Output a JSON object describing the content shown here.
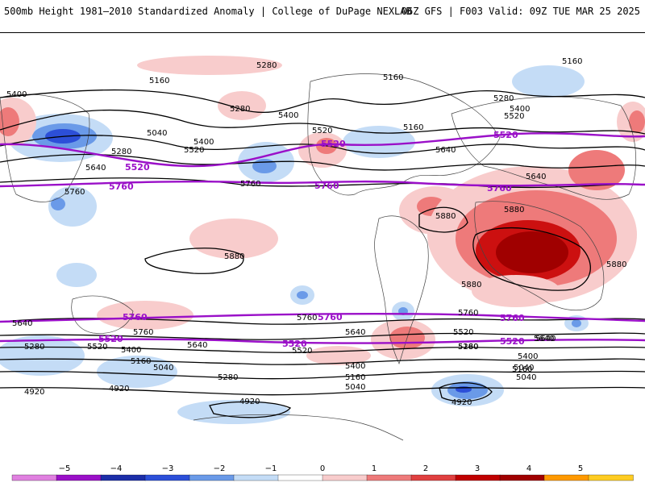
{
  "header": {
    "title": "500mb Height 1981–2010 Standardized Anomaly | College of DuPage NEXLAB",
    "run_info": "06Z GFS | F003 Valid: 09Z TUE MAR 25 2025"
  },
  "map": {
    "contour_labels_black": [
      "5280",
      "5160",
      "5400",
      "5160",
      "5040",
      "5280",
      "5400",
      "5520",
      "5400",
      "5280",
      "5520",
      "5640",
      "5760",
      "5160",
      "5160",
      "5280",
      "5400",
      "5520",
      "5640",
      "5640",
      "5760",
      "5880",
      "5880",
      "5880",
      "5880",
      "5880",
      "5640",
      "5760",
      "5760",
      "5640",
      "5520",
      "5400",
      "5280",
      "5160",
      "5040",
      "4920",
      "4920",
      "5640",
      "5280",
      "5160",
      "5040",
      "5520",
      "5400",
      "5280",
      "5160",
      "5040",
      "4920",
      "4920",
      "5640",
      "5520",
      "5400",
      "5160",
      "5040",
      "5760",
      "5640"
    ],
    "contour_labels_purple": [
      "5520",
      "5760",
      "5520",
      "5760",
      "5520",
      "5760",
      "5760",
      "5760",
      "5520",
      "5520",
      "5760",
      "5520"
    ],
    "colors": {
      "contour_black": "#000000",
      "contour_purple": "#9a10c8",
      "neg1": "#c4dcf6",
      "neg2": "#6a9ae8",
      "neg3": "#2c4fd8",
      "pos1": "#f8cccc",
      "pos2": "#ee7a7a",
      "pos3": "#cc1010",
      "pos4": "#a00000"
    }
  },
  "colorbar": {
    "ticks": [
      "−5",
      "−4",
      "−3",
      "−2",
      "−1",
      "0",
      "1",
      "2",
      "3",
      "4",
      "5"
    ],
    "colors": [
      "#e080e0",
      "#9a10c8",
      "#1c2ea8",
      "#2c4fd8",
      "#6a9ae8",
      "#c4dcf6",
      "#ffffff",
      "#f8cccc",
      "#ee7a7a",
      "#e04040",
      "#c00000",
      "#a00000",
      "#ff9900",
      "#ffcc22"
    ]
  }
}
